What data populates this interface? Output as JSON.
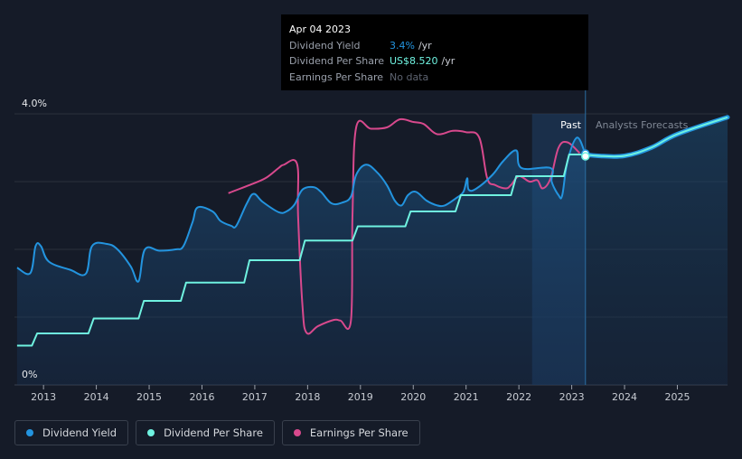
{
  "tooltip": {
    "date": "Apr 04 2023",
    "rows": [
      {
        "label": "Dividend Yield",
        "value": "3.4%",
        "unit": "/yr"
      },
      {
        "label": "Dividend Per Share",
        "value": "US$8.520",
        "unit": "/yr"
      },
      {
        "label": "Earnings Per Share",
        "value": "No data",
        "unit": ""
      }
    ]
  },
  "regions": {
    "past_label": "Past",
    "forecast_label": "Analysts Forecasts"
  },
  "legend": [
    {
      "label": "Dividend Yield",
      "color": "#2394df"
    },
    {
      "label": "Dividend Per Share",
      "color": "#6ff2e0"
    },
    {
      "label": "Earnings Per Share",
      "color": "#d8498d"
    }
  ],
  "chart_data": {
    "type": "line",
    "y_tick_labels": [
      "4.0%",
      "0%"
    ],
    "ylim": [
      0,
      4.0
    ],
    "xlim": [
      2012.45,
      2025.95
    ],
    "x_ticks": [
      2013,
      2014,
      2015,
      2016,
      2017,
      2018,
      2019,
      2020,
      2021,
      2022,
      2023,
      2024,
      2025
    ],
    "grid": true,
    "legend_position": "bottom-left",
    "forecast_start": 2023.26,
    "highlight_band": [
      2022.25,
      2023.26
    ],
    "series": [
      {
        "name": "Dividend Yield",
        "color": "#2394df",
        "area": true,
        "points": [
          [
            2012.5,
            1.73
          ],
          [
            2012.75,
            1.65
          ],
          [
            2012.85,
            2.05
          ],
          [
            2012.95,
            2.05
          ],
          [
            2013.1,
            1.82
          ],
          [
            2013.5,
            1.7
          ],
          [
            2013.8,
            1.64
          ],
          [
            2013.92,
            2.05
          ],
          [
            2014.2,
            2.08
          ],
          [
            2014.4,
            2.0
          ],
          [
            2014.65,
            1.75
          ],
          [
            2014.8,
            1.53
          ],
          [
            2014.92,
            2.0
          ],
          [
            2015.2,
            1.98
          ],
          [
            2015.5,
            2.0
          ],
          [
            2015.65,
            2.05
          ],
          [
            2015.82,
            2.4
          ],
          [
            2015.92,
            2.62
          ],
          [
            2016.2,
            2.56
          ],
          [
            2016.35,
            2.42
          ],
          [
            2016.55,
            2.35
          ],
          [
            2016.65,
            2.35
          ],
          [
            2016.85,
            2.68
          ],
          [
            2016.98,
            2.82
          ],
          [
            2017.15,
            2.7
          ],
          [
            2017.45,
            2.55
          ],
          [
            2017.6,
            2.56
          ],
          [
            2017.75,
            2.66
          ],
          [
            2017.9,
            2.88
          ],
          [
            2018.1,
            2.92
          ],
          [
            2018.25,
            2.85
          ],
          [
            2018.45,
            2.68
          ],
          [
            2018.65,
            2.69
          ],
          [
            2018.82,
            2.78
          ],
          [
            2018.92,
            3.1
          ],
          [
            2019.1,
            3.25
          ],
          [
            2019.3,
            3.15
          ],
          [
            2019.5,
            2.95
          ],
          [
            2019.65,
            2.72
          ],
          [
            2019.78,
            2.65
          ],
          [
            2019.9,
            2.8
          ],
          [
            2020.05,
            2.85
          ],
          [
            2020.25,
            2.72
          ],
          [
            2020.45,
            2.65
          ],
          [
            2020.6,
            2.65
          ],
          [
            2020.8,
            2.75
          ],
          [
            2020.95,
            2.85
          ],
          [
            2021.02,
            3.05
          ],
          [
            2021.05,
            2.88
          ],
          [
            2021.2,
            2.9
          ],
          [
            2021.5,
            3.1
          ],
          [
            2021.7,
            3.3
          ],
          [
            2021.95,
            3.46
          ],
          [
            2022.05,
            3.2
          ],
          [
            2022.6,
            3.2
          ],
          [
            2022.62,
            3.0
          ],
          [
            2022.75,
            2.8
          ],
          [
            2022.82,
            2.8
          ],
          [
            2022.92,
            3.3
          ],
          [
            2023.1,
            3.65
          ],
          [
            2023.26,
            3.4
          ]
        ]
      },
      {
        "name": "Dividend Per Share",
        "color": "#6ff2e0",
        "area": false,
        "points": [
          [
            2012.5,
            0.58
          ],
          [
            2012.78,
            0.58
          ],
          [
            2012.88,
            0.76
          ],
          [
            2013.85,
            0.76
          ],
          [
            2013.95,
            0.98
          ],
          [
            2014.8,
            0.98
          ],
          [
            2014.9,
            1.24
          ],
          [
            2015.6,
            1.24
          ],
          [
            2015.7,
            1.51
          ],
          [
            2016.8,
            1.51
          ],
          [
            2016.9,
            1.84
          ],
          [
            2017.85,
            1.84
          ],
          [
            2017.95,
            2.13
          ],
          [
            2018.85,
            2.13
          ],
          [
            2018.95,
            2.34
          ],
          [
            2019.85,
            2.34
          ],
          [
            2019.95,
            2.56
          ],
          [
            2020.8,
            2.56
          ],
          [
            2020.9,
            2.8
          ],
          [
            2021.85,
            2.8
          ],
          [
            2021.95,
            3.08
          ],
          [
            2022.85,
            3.08
          ],
          [
            2022.95,
            3.4
          ],
          [
            2023.26,
            3.4
          ],
          [
            2023.5,
            3.38
          ],
          [
            2024.0,
            3.38
          ],
          [
            2024.5,
            3.5
          ],
          [
            2025.0,
            3.7
          ],
          [
            2025.95,
            3.95
          ]
        ]
      },
      {
        "name": "Earnings Per Share",
        "color": "#d8498d",
        "area": false,
        "points": [
          [
            2016.5,
            2.83
          ],
          [
            2016.9,
            2.95
          ],
          [
            2017.2,
            3.05
          ],
          [
            2017.45,
            3.2
          ],
          [
            2017.55,
            3.25
          ],
          [
            2017.8,
            3.26
          ],
          [
            2017.82,
            2.5
          ],
          [
            2017.9,
            1.2
          ],
          [
            2017.98,
            0.77
          ],
          [
            2018.2,
            0.87
          ],
          [
            2018.5,
            0.96
          ],
          [
            2018.62,
            0.95
          ],
          [
            2018.82,
            0.95
          ],
          [
            2018.85,
            2.5
          ],
          [
            2018.92,
            3.8
          ],
          [
            2019.2,
            3.78
          ],
          [
            2019.5,
            3.8
          ],
          [
            2019.75,
            3.92
          ],
          [
            2020.0,
            3.88
          ],
          [
            2020.2,
            3.85
          ],
          [
            2020.45,
            3.7
          ],
          [
            2020.75,
            3.75
          ],
          [
            2021.0,
            3.73
          ],
          [
            2021.25,
            3.65
          ],
          [
            2021.4,
            3.05
          ],
          [
            2021.55,
            2.95
          ],
          [
            2021.75,
            2.9
          ],
          [
            2021.85,
            2.95
          ],
          [
            2022.0,
            3.08
          ],
          [
            2022.2,
            3.0
          ],
          [
            2022.35,
            3.02
          ],
          [
            2022.45,
            2.9
          ],
          [
            2022.6,
            3.05
          ],
          [
            2022.75,
            3.5
          ],
          [
            2022.92,
            3.58
          ],
          [
            2023.15,
            3.42
          ]
        ]
      }
    ]
  }
}
